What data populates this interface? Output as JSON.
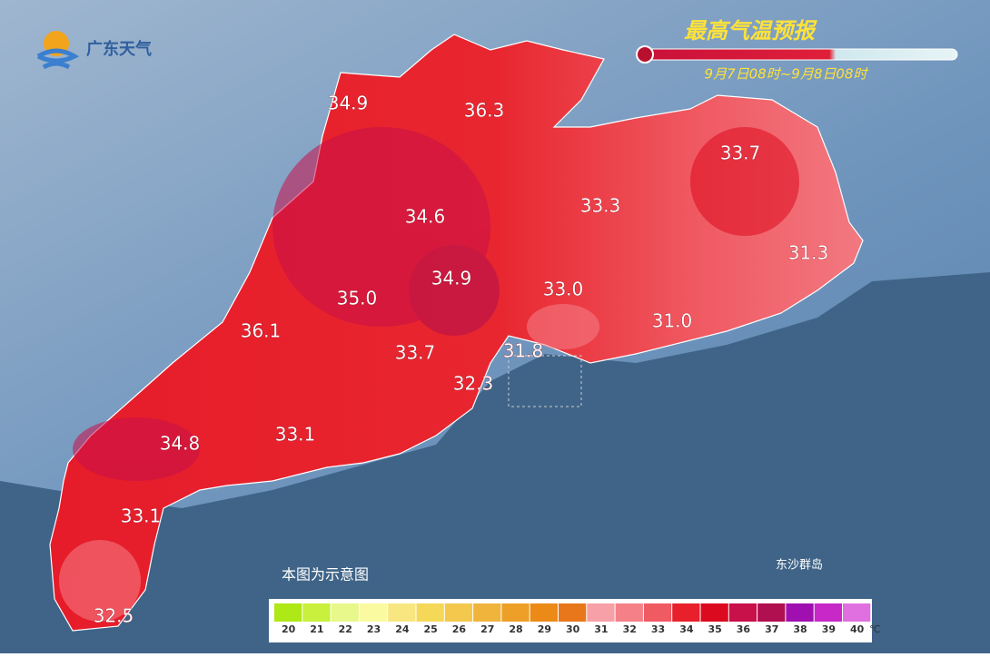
{
  "header": {
    "logo": "广东天气",
    "title": "最高气温预报",
    "period": "9月7日08时~9月8日08时"
  },
  "stations": [
    {
      "label": "34.9"
    },
    {
      "label": "36.3"
    },
    {
      "label": "33.7"
    },
    {
      "label": "34.6"
    },
    {
      "label": "33.3"
    },
    {
      "label": "31.3"
    },
    {
      "label": "34.9"
    },
    {
      "label": "35.0"
    },
    {
      "label": "33.0"
    },
    {
      "label": "36.1"
    },
    {
      "label": "31.0"
    },
    {
      "label": "33.7"
    },
    {
      "label": "31.8"
    },
    {
      "label": "32.3"
    },
    {
      "label": "34.8"
    },
    {
      "label": "33.1"
    },
    {
      "label": "33.1"
    },
    {
      "label": "32.5"
    }
  ],
  "notes": {
    "schematic": "本图为示意图",
    "islands": "东沙群岛"
  },
  "legend": {
    "unit": "℃",
    "items": [
      {
        "value": 20,
        "color": "#aee817"
      },
      {
        "value": 21,
        "color": "#c8f03c"
      },
      {
        "value": 22,
        "color": "#e8f88a"
      },
      {
        "value": 23,
        "color": "#fafaa0"
      },
      {
        "value": 24,
        "color": "#f8e680"
      },
      {
        "value": 25,
        "color": "#f5d857"
      },
      {
        "value": 26,
        "color": "#f3c84c"
      },
      {
        "value": 27,
        "color": "#f0b43d"
      },
      {
        "value": 28,
        "color": "#ee9f28"
      },
      {
        "value": 29,
        "color": "#ec8a18"
      },
      {
        "value": 30,
        "color": "#e8771b"
      },
      {
        "value": 31,
        "color": "#f7a0a8"
      },
      {
        "value": 32,
        "color": "#f58088"
      },
      {
        "value": 33,
        "color": "#f05a63"
      },
      {
        "value": 34,
        "color": "#e8202c"
      },
      {
        "value": 35,
        "color": "#dc0a1e"
      },
      {
        "value": 36,
        "color": "#c8104a"
      },
      {
        "value": 37,
        "color": "#b01050"
      },
      {
        "value": 38,
        "color": "#a010b0"
      },
      {
        "value": 39,
        "color": "#c828c8"
      },
      {
        "value": 40,
        "color": "#e070e0"
      }
    ]
  }
}
